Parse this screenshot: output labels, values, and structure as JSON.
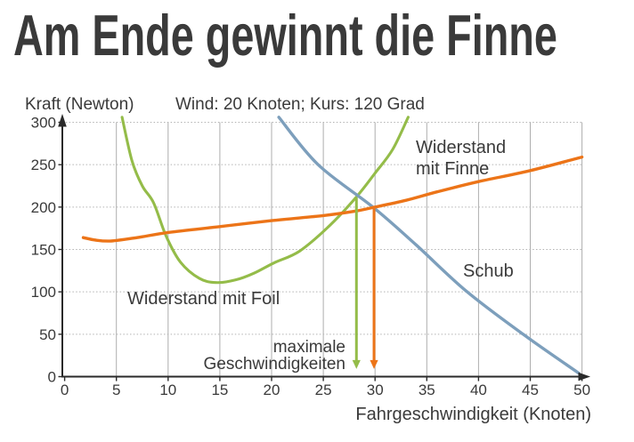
{
  "page": {
    "background": "#ffffff"
  },
  "colors": {
    "title_teal": "#00a3a6",
    "finne_orange": "#ec7418",
    "foil_green": "#94bc49",
    "schub_blue": "#7d9fbc",
    "text_dark": "#3a3a3a"
  },
  "labels": {
    "title": "Am Ende gewinnt die Finne",
    "y_axis_title": "Kraft (Newton)",
    "conditions": "Wind: 20 Knoten; Kurs: 120 Grad",
    "x_axis_title": "Fahrgeschwindigkeit (Knoten)",
    "schub": "Schub",
    "finne_line1": "Widerstand",
    "finne_line2": "mit Finne",
    "foil": "Widerstand mit Foil",
    "max_speed_line1": "maximale",
    "max_speed_line2": "Geschwindigkeiten"
  },
  "chart_data": {
    "type": "line",
    "title": "Am Ende gewinnt die Finne",
    "subtitle": "Wind: 20 Knoten; Kurs: 120 Grad",
    "xlabel": "Fahrgeschwindigkeit (Knoten)",
    "ylabel": "Kraft (Newton)",
    "xlim": [
      0,
      50
    ],
    "ylim": [
      0,
      300
    ],
    "x_ticks": [
      0,
      5,
      10,
      15,
      20,
      25,
      30,
      35,
      40,
      45,
      50
    ],
    "y_ticks": [
      0,
      50,
      100,
      150,
      200,
      250,
      300
    ],
    "grid": true,
    "legend_position": "inline-annotations",
    "series": [
      {
        "name": "Widerstand mit Foil",
        "color": "#94bc49",
        "width": 3.1,
        "points": [
          [
            5.55,
            306
          ],
          [
            6.5,
            255
          ],
          [
            7.5,
            225
          ],
          [
            8.6,
            205
          ],
          [
            9.8,
            166
          ],
          [
            11.2,
            135
          ],
          [
            13,
            116
          ],
          [
            14.6,
            111
          ],
          [
            16.5,
            114
          ],
          [
            18.3,
            122
          ],
          [
            20.2,
            134
          ],
          [
            22.7,
            148
          ],
          [
            25.6,
            178
          ],
          [
            28.2,
            212
          ],
          [
            30,
            240
          ],
          [
            31.7,
            268
          ],
          [
            33.2,
            306
          ]
        ]
      },
      {
        "name": "Schub",
        "color": "#7d9fbc",
        "width": 3.4,
        "points": [
          [
            20.7,
            306
          ],
          [
            24.5,
            250
          ],
          [
            29.9,
            199
          ],
          [
            34,
            155
          ],
          [
            38.8,
            101
          ],
          [
            44.3,
            50
          ],
          [
            49.7,
            4
          ]
        ]
      },
      {
        "name": "Widerstand mit Finne",
        "color": "#ec7418",
        "width": 3.4,
        "points": [
          [
            1.8,
            164
          ],
          [
            3,
            161
          ],
          [
            4.5,
            160
          ],
          [
            7,
            164
          ],
          [
            10,
            170
          ],
          [
            15,
            177
          ],
          [
            20,
            184
          ],
          [
            25,
            190
          ],
          [
            28,
            195
          ],
          [
            30,
            200
          ],
          [
            33,
            208
          ],
          [
            36,
            218
          ],
          [
            40,
            230
          ],
          [
            45,
            243
          ],
          [
            50,
            259
          ]
        ]
      }
    ],
    "arrows": [
      {
        "name": "max-speed-foil",
        "x": 28.2,
        "from": 211,
        "to": 9,
        "color": "#94bc49"
      },
      {
        "name": "max-speed-finne",
        "x": 29.9,
        "from": 198,
        "to": 9,
        "color": "#ec7418"
      }
    ],
    "annotations": [
      {
        "text": "Widerstand mit Finne",
        "x": 34,
        "y": 250,
        "color": "#ec7418"
      },
      {
        "text": "Widerstand mit Foil",
        "x": 6.5,
        "y": 92,
        "color": "#94bc49"
      },
      {
        "text": "Schub",
        "x": 38.6,
        "y": 122,
        "color": "#3a3a3a"
      },
      {
        "text": "maximale Geschwindigkeiten",
        "x": 27.1,
        "y": 25,
        "color": "#3a3a3a"
      }
    ]
  }
}
